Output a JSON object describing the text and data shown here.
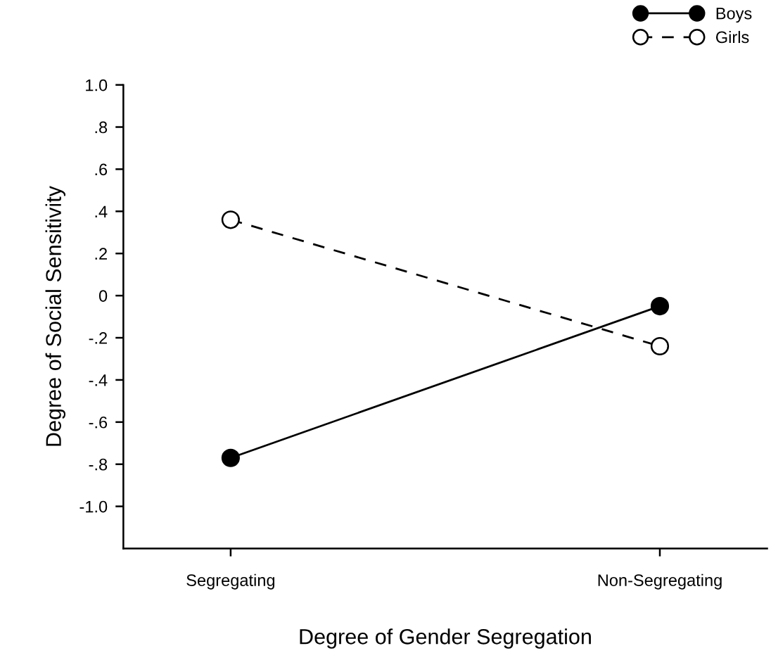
{
  "chart_data": {
    "type": "line",
    "xlabel": "Degree of Gender Segregation",
    "ylabel": "Degree of Social Sensitivity",
    "categories": [
      "Segregating",
      "Non-Segregating"
    ],
    "series": [
      {
        "name": "Boys",
        "color": "#000000",
        "values": [
          -0.77,
          -0.05
        ],
        "marker": "circle",
        "line_style": "solid"
      },
      {
        "name": "Girls",
        "color": "#000000",
        "values": [
          0.36,
          -0.24
        ],
        "marker": "circle",
        "line_style": "dashed"
      }
    ],
    "ylim": [
      -1.2,
      1.0
    ],
    "yticks": [
      {
        "value": 1.0,
        "label": "1.0"
      },
      {
        "value": 0.8,
        "label": ".8"
      },
      {
        "value": 0.6,
        "label": ".6"
      },
      {
        "value": 0.4,
        "label": ".4"
      },
      {
        "value": 0.2,
        "label": ".2"
      },
      {
        "value": 0,
        "label": "0"
      },
      {
        "value": -0.2,
        "label": "-.2"
      },
      {
        "value": -0.4,
        "label": "-.4"
      },
      {
        "value": -0.6,
        "label": "-.6"
      },
      {
        "value": -0.8,
        "label": "-.8"
      },
      {
        "value": -1.0,
        "label": "-1.0"
      }
    ],
    "grid": false,
    "legend": "top right"
  }
}
